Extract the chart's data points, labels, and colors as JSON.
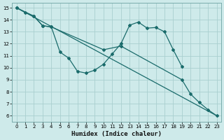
{
  "xlabel": "Humidex (Indice chaleur)",
  "background_color": "#ceeaea",
  "grid_color": "#aacfcf",
  "line_color": "#1a6b6b",
  "x_min": -0.5,
  "x_max": 23.5,
  "y_min": 5.5,
  "y_max": 15.4,
  "series": [
    {
      "x": [
        0,
        1,
        2,
        3,
        4,
        5,
        6,
        7,
        8,
        9,
        10,
        11,
        12,
        13,
        14,
        15,
        16,
        17,
        18,
        19
      ],
      "y": [
        15.0,
        14.6,
        14.3,
        13.5,
        13.4,
        11.3,
        10.8,
        9.7,
        9.55,
        9.8,
        10.3,
        11.15,
        12.0,
        13.55,
        13.8,
        13.3,
        13.35,
        13.0,
        11.5,
        10.1
      ]
    },
    {
      "x": [
        0,
        23
      ],
      "y": [
        15.0,
        6.0
      ]
    },
    {
      "x": [
        0,
        2,
        3,
        4,
        10,
        12,
        19,
        20,
        21,
        22,
        23
      ],
      "y": [
        15.0,
        14.3,
        13.5,
        13.4,
        11.5,
        11.8,
        9.0,
        7.8,
        7.1,
        6.5,
        6.0
      ]
    }
  ],
  "yticks": [
    6,
    7,
    8,
    9,
    10,
    11,
    12,
    13,
    14,
    15
  ],
  "xticks": [
    0,
    1,
    2,
    3,
    4,
    5,
    6,
    7,
    8,
    9,
    10,
    11,
    12,
    13,
    14,
    15,
    16,
    17,
    18,
    19,
    20,
    21,
    22,
    23
  ]
}
